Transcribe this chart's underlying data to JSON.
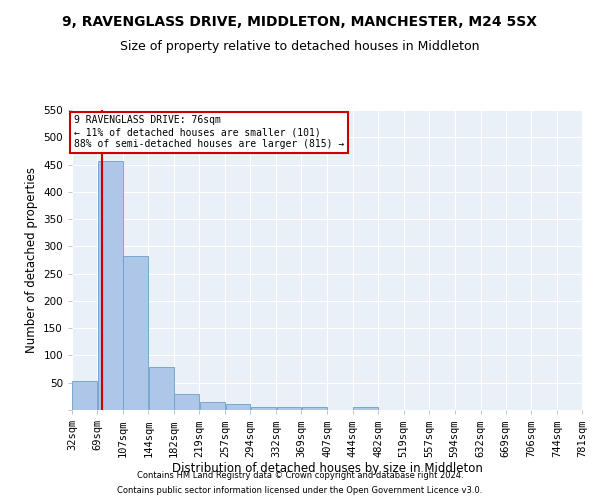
{
  "title": "9, RAVENGLASS DRIVE, MIDDLETON, MANCHESTER, M24 5SX",
  "subtitle": "Size of property relative to detached houses in Middleton",
  "xlabel": "Distribution of detached houses by size in Middleton",
  "ylabel": "Number of detached properties",
  "bins": [
    32,
    69,
    107,
    144,
    182,
    219,
    257,
    294,
    332,
    369,
    407,
    444,
    482,
    519,
    557,
    594,
    632,
    669,
    706,
    744,
    781
  ],
  "bar_heights": [
    53,
    457,
    283,
    78,
    30,
    15,
    11,
    5,
    5,
    6,
    0,
    5,
    0,
    0,
    0,
    0,
    0,
    0,
    0,
    0
  ],
  "bar_color": "#aec6e8",
  "bar_edge_color": "#6aa0c8",
  "vline_color": "#cc0000",
  "vline_x": 76,
  "annotation_text": "9 RAVENGLASS DRIVE: 76sqm\n← 11% of detached houses are smaller (101)\n88% of semi-detached houses are larger (815) →",
  "annotation_box_color": "white",
  "annotation_box_edge": "#cc0000",
  "ylim": [
    0,
    550
  ],
  "yticks": [
    0,
    50,
    100,
    150,
    200,
    250,
    300,
    350,
    400,
    450,
    500,
    550
  ],
  "bg_color": "#eaf0f8",
  "footer_line1": "Contains HM Land Registry data © Crown copyright and database right 2024.",
  "footer_line2": "Contains public sector information licensed under the Open Government Licence v3.0.",
  "title_fontsize": 10,
  "subtitle_fontsize": 9,
  "axis_label_fontsize": 8.5,
  "tick_fontsize": 7.5,
  "footer_fontsize": 6
}
